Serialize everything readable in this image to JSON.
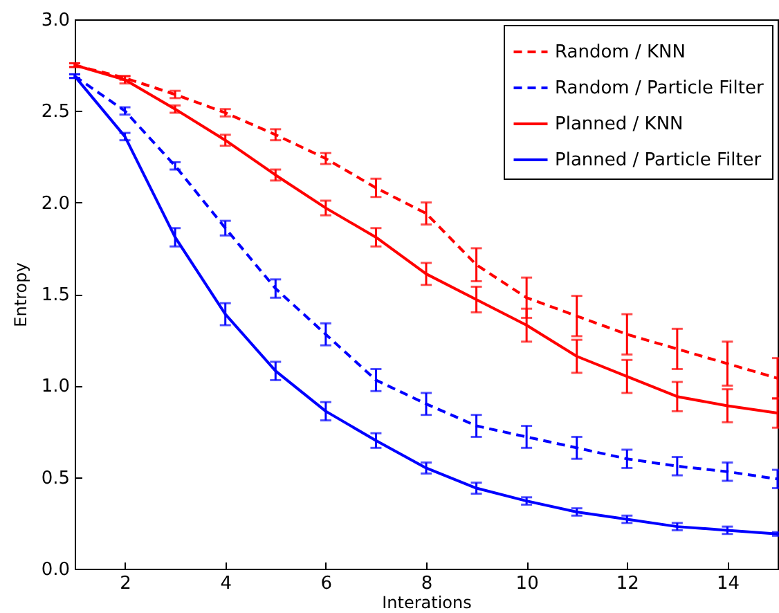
{
  "chart_data": {
    "type": "line",
    "xlabel": "Interations",
    "ylabel": "Entropy",
    "x": [
      1,
      2,
      3,
      4,
      5,
      6,
      7,
      8,
      9,
      10,
      11,
      12,
      13,
      14,
      15
    ],
    "xlim": [
      1,
      15
    ],
    "xticks": [
      2,
      4,
      6,
      8,
      10,
      12,
      14
    ],
    "ylim": [
      0,
      3
    ],
    "yticks": [
      {
        "value": 0,
        "label": "0.0"
      },
      0.5,
      {
        "value": 1,
        "label": "1.0"
      },
      1.5,
      {
        "value": 2,
        "label": "2.0"
      },
      2.5,
      {
        "value": 3,
        "label": "3.0"
      }
    ],
    "legend": "top right",
    "grid": false,
    "marker": "none",
    "series": [
      {
        "name": "Random / KNN",
        "color": "#ff0000",
        "line_style": "dashed",
        "values": [
          2.75,
          2.68,
          2.59,
          2.49,
          2.37,
          2.24,
          2.08,
          1.94,
          1.66,
          1.48,
          1.38,
          1.28,
          1.2,
          1.12,
          1.04
        ],
        "errors": [
          0.01,
          0.01,
          0.02,
          0.02,
          0.03,
          0.03,
          0.05,
          0.06,
          0.09,
          0.11,
          0.11,
          0.11,
          0.11,
          0.12,
          0.11
        ]
      },
      {
        "name": "Random / Particle Filter",
        "color": "#0000ff",
        "line_style": "dashed",
        "values": [
          2.69,
          2.5,
          2.2,
          1.86,
          1.53,
          1.28,
          1.03,
          0.9,
          0.78,
          0.72,
          0.66,
          0.6,
          0.56,
          0.53,
          0.49
        ],
        "errors": [
          0.01,
          0.02,
          0.02,
          0.04,
          0.05,
          0.06,
          0.06,
          0.06,
          0.06,
          0.06,
          0.06,
          0.05,
          0.05,
          0.05,
          0.05
        ]
      },
      {
        "name": "Planned / KNN",
        "color": "#ff0000",
        "line_style": "solid",
        "values": [
          2.75,
          2.67,
          2.51,
          2.34,
          2.15,
          1.97,
          1.81,
          1.61,
          1.47,
          1.33,
          1.16,
          1.05,
          0.94,
          0.89,
          0.85
        ],
        "errors": [
          0.01,
          0.02,
          0.02,
          0.03,
          0.03,
          0.04,
          0.05,
          0.06,
          0.07,
          0.09,
          0.09,
          0.09,
          0.08,
          0.09,
          0.08
        ]
      },
      {
        "name": "Planned / Particle Filter",
        "color": "#0000ff",
        "line_style": "solid",
        "values": [
          2.69,
          2.36,
          1.81,
          1.39,
          1.08,
          0.86,
          0.7,
          0.55,
          0.44,
          0.37,
          0.31,
          0.27,
          0.23,
          0.21,
          0.19
        ],
        "errors": [
          0.01,
          0.02,
          0.05,
          0.06,
          0.05,
          0.05,
          0.04,
          0.03,
          0.03,
          0.02,
          0.02,
          0.02,
          0.02,
          0.02,
          0.01
        ]
      }
    ]
  }
}
